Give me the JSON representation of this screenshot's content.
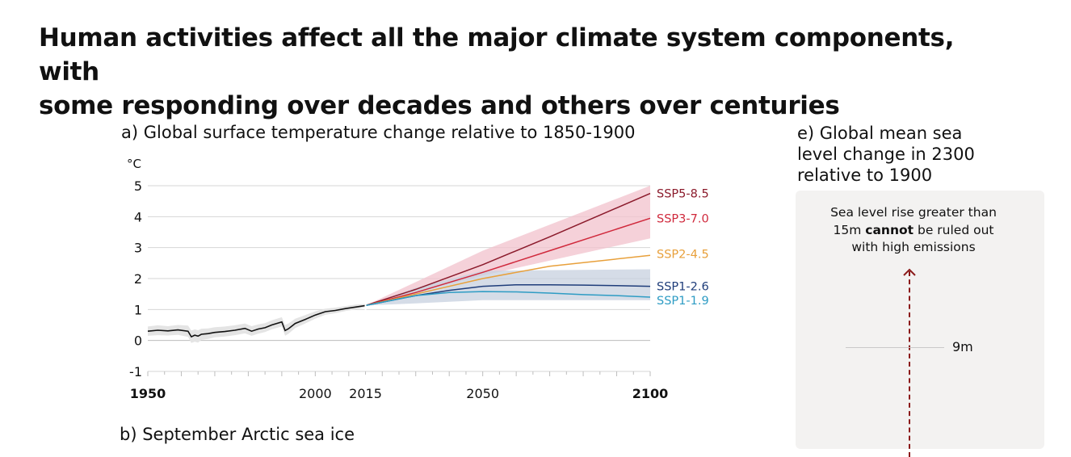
{
  "header": {
    "title_line1": "Human activities affect all the major climate system components, with",
    "title_line2": "some responding over decades and others over centuries"
  },
  "panel_a": {
    "title": "a) Global surface temperature change relative to 1850-1900",
    "y_unit": "°C"
  },
  "panel_b": {
    "title": "b) September Arctic sea ice"
  },
  "panel_e": {
    "title_line1": "e) Global mean sea",
    "title_line2": "level change in 2300",
    "title_line3": "relative to 1900",
    "note_line1": "Sea level rise greater than",
    "note_line2_pre": "15m ",
    "note_line2_bold": "cannot",
    "note_line2_post": " be ruled out",
    "note_line3": "with high emissions",
    "tick_label": "9m",
    "arrow_color": "#8b1a1a"
  },
  "chart_data": {
    "type": "line",
    "title": "a) Global surface temperature change relative to 1850-1900",
    "ylabel": "°C",
    "xlim": [
      1950,
      2100
    ],
    "ylim": [
      -1,
      5
    ],
    "y_ticks": [
      5,
      4,
      3,
      2,
      1,
      0,
      -1
    ],
    "x_ticks": [
      {
        "value": 1950,
        "label": "1950",
        "bold": true
      },
      {
        "value": 2000,
        "label": "2000",
        "bold": false
      },
      {
        "value": 2015,
        "label": "2015",
        "bold": false
      },
      {
        "value": 2050,
        "label": "2050",
        "bold": false
      },
      {
        "value": 2100,
        "label": "2100",
        "bold": true
      }
    ],
    "grid": true,
    "historical": {
      "name": "",
      "color": "#111111",
      "band_color": "#e4e4e4",
      "x": [
        1950,
        1953,
        1956,
        1959,
        1962,
        1963,
        1964,
        1965,
        1966,
        1968,
        1970,
        1973,
        1976,
        1979,
        1981,
        1983,
        1985,
        1987,
        1990,
        1991,
        1992,
        1994,
        1997,
        2000,
        2003,
        2006,
        2009,
        2012,
        2015
      ],
      "y": [
        0.3,
        0.33,
        0.31,
        0.34,
        0.3,
        0.12,
        0.17,
        0.14,
        0.2,
        0.22,
        0.26,
        0.29,
        0.33,
        0.39,
        0.3,
        0.37,
        0.41,
        0.5,
        0.6,
        0.32,
        0.38,
        0.55,
        0.68,
        0.82,
        0.93,
        0.97,
        1.03,
        1.08,
        1.13
      ],
      "lower": [
        0.15,
        0.17,
        0.16,
        0.18,
        0.12,
        -0.08,
        -0.04,
        -0.07,
        0.02,
        0.05,
        0.1,
        0.13,
        0.17,
        0.23,
        0.15,
        0.22,
        0.27,
        0.36,
        0.45,
        0.15,
        0.22,
        0.4,
        0.55,
        0.7,
        0.83,
        0.88,
        0.95,
        1.0,
        1.08
      ],
      "upper": [
        0.45,
        0.49,
        0.46,
        0.5,
        0.48,
        0.32,
        0.36,
        0.33,
        0.38,
        0.39,
        0.43,
        0.45,
        0.49,
        0.55,
        0.46,
        0.52,
        0.56,
        0.65,
        0.75,
        0.5,
        0.55,
        0.7,
        0.82,
        0.94,
        1.03,
        1.06,
        1.11,
        1.16,
        1.18
      ]
    },
    "series": [
      {
        "name": "SSP5-8.5",
        "color": "#8b1a2b",
        "x": [
          2015,
          2030,
          2050,
          2070,
          2100
        ],
        "y": [
          1.13,
          1.65,
          2.45,
          3.35,
          4.75
        ],
        "band": {
          "color": "#f2c2cc",
          "lower_x": [
            2015,
            2050,
            2100
          ],
          "lower_y": [
            1.13,
            2.1,
            3.3
          ],
          "upper_x": [
            2015,
            2050,
            2100
          ],
          "upper_y": [
            1.13,
            2.9,
            5.0
          ]
        }
      },
      {
        "name": "SSP3-7.0",
        "color": "#d0293c",
        "x": [
          2015,
          2030,
          2050,
          2070,
          2100
        ],
        "y": [
          1.13,
          1.55,
          2.2,
          2.9,
          3.95
        ]
      },
      {
        "name": "SSP2-4.5",
        "color": "#e8a03b",
        "x": [
          2015,
          2030,
          2050,
          2070,
          2100
        ],
        "y": [
          1.13,
          1.5,
          2.0,
          2.4,
          2.75
        ]
      },
      {
        "name": "SSP1-2.6",
        "color": "#1f3d7a",
        "x": [
          2015,
          2030,
          2040,
          2050,
          2060,
          2070,
          2080,
          2090,
          2100
        ],
        "y": [
          1.13,
          1.45,
          1.62,
          1.75,
          1.8,
          1.8,
          1.79,
          1.77,
          1.75
        ],
        "band": {
          "color": "#c7d0df",
          "lower_x": [
            2015,
            2030,
            2050,
            2100
          ],
          "lower_y": [
            1.13,
            1.2,
            1.3,
            1.3
          ],
          "upper_x": [
            2015,
            2030,
            2050,
            2100
          ],
          "upper_y": [
            1.13,
            1.7,
            2.25,
            2.3
          ]
        }
      },
      {
        "name": "SSP1-1.9",
        "color": "#2e9cc4",
        "x": [
          2015,
          2030,
          2040,
          2050,
          2060,
          2070,
          2080,
          2090,
          2100
        ],
        "y": [
          1.13,
          1.45,
          1.55,
          1.58,
          1.57,
          1.53,
          1.48,
          1.45,
          1.4
        ]
      }
    ],
    "series_label_y": [
      4.75,
      3.95,
      2.8,
      1.75,
      1.3
    ]
  }
}
